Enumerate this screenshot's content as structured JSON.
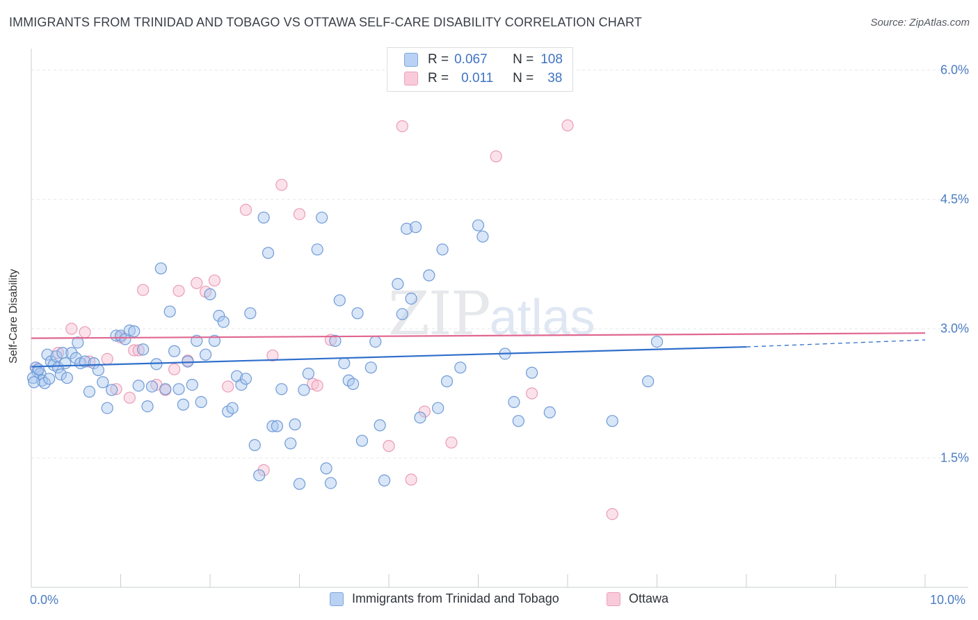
{
  "title": "IMMIGRANTS FROM TRINIDAD AND TOBAGO VS OTTAWA SELF-CARE DISABILITY CORRELATION CHART",
  "source": "Source: ZipAtlas.com",
  "watermark": {
    "zip": "ZIP",
    "atlas": "atlas"
  },
  "legend": {
    "r_label": "R =",
    "n_label": "N =",
    "series1": {
      "r": "0.067",
      "n": "108"
    },
    "series2": {
      "r": "0.011",
      "n": "38"
    }
  },
  "colors": {
    "blue_fill": "#a9c8f0",
    "blue_stroke": "#6f9ad6",
    "blue_line": "#2f6fcb",
    "pink_fill": "#f7bfd1",
    "pink_stroke": "#ea9bb7",
    "pink_line": "#e06690",
    "tick_color": "#4a7cc2"
  },
  "chart_data": {
    "type": "scatter",
    "title": "IMMIGRANTS FROM TRINIDAD AND TOBAGO VS OTTAWA SELF-CARE DISABILITY CORRELATION CHART",
    "xlabel": "",
    "ylabel": "Self-Care Disability",
    "xlim": [
      0,
      10
    ],
    "ylim": [
      0,
      6.25
    ],
    "x_tick_labels": [
      "0.0%",
      "10.0%"
    ],
    "y_ticks": [
      1.5,
      3.0,
      4.5,
      6.0
    ],
    "y_tick_labels": [
      "1.5%",
      "3.0%",
      "4.5%",
      "6.0%"
    ],
    "grid": "horizontal dashed",
    "legend_position": "top-center and bottom",
    "series": [
      {
        "name": "Immigrants from Trinidad and Tobago",
        "color": "#a9c8f0",
        "trend": {
          "x": [
            0,
            8.0
          ],
          "y": [
            2.56,
            2.79
          ],
          "dashed_extension_to": [
            10,
            2.87
          ]
        },
        "points": [
          [
            0.05,
            2.55
          ],
          [
            0.07,
            2.5
          ],
          [
            0.1,
            2.48
          ],
          [
            0.12,
            2.4
          ],
          [
            0.15,
            2.37
          ],
          [
            0.18,
            2.7
          ],
          [
            0.2,
            2.42
          ],
          [
            0.22,
            2.62
          ],
          [
            0.25,
            2.58
          ],
          [
            0.28,
            2.68
          ],
          [
            0.3,
            2.55
          ],
          [
            0.33,
            2.47
          ],
          [
            0.35,
            2.72
          ],
          [
            0.38,
            2.6
          ],
          [
            0.4,
            2.43
          ],
          [
            0.45,
            2.72
          ],
          [
            0.5,
            2.66
          ],
          [
            0.52,
            2.84
          ],
          [
            0.55,
            2.6
          ],
          [
            0.6,
            2.62
          ],
          [
            0.65,
            2.27
          ],
          [
            0.7,
            2.6
          ],
          [
            0.75,
            2.52
          ],
          [
            0.8,
            2.38
          ],
          [
            0.85,
            2.08
          ],
          [
            0.9,
            2.29
          ],
          [
            0.95,
            2.92
          ],
          [
            1.0,
            2.92
          ],
          [
            1.05,
            2.88
          ],
          [
            1.1,
            2.98
          ],
          [
            1.15,
            2.97
          ],
          [
            1.2,
            2.34
          ],
          [
            1.25,
            2.76
          ],
          [
            1.3,
            2.1
          ],
          [
            1.35,
            2.33
          ],
          [
            1.4,
            2.59
          ],
          [
            1.45,
            3.7
          ],
          [
            1.5,
            2.3
          ],
          [
            1.55,
            3.2
          ],
          [
            1.6,
            2.74
          ],
          [
            1.65,
            2.3
          ],
          [
            1.7,
            2.12
          ],
          [
            1.75,
            2.62
          ],
          [
            1.8,
            2.35
          ],
          [
            1.85,
            2.86
          ],
          [
            1.9,
            2.15
          ],
          [
            1.95,
            2.7
          ],
          [
            2.0,
            3.4
          ],
          [
            2.05,
            2.86
          ],
          [
            2.1,
            3.15
          ],
          [
            2.15,
            3.08
          ],
          [
            2.2,
            2.04
          ],
          [
            2.25,
            2.08
          ],
          [
            2.3,
            2.45
          ],
          [
            2.35,
            2.35
          ],
          [
            2.4,
            2.42
          ],
          [
            2.45,
            3.18
          ],
          [
            2.5,
            1.65
          ],
          [
            2.55,
            1.3
          ],
          [
            2.6,
            4.29
          ],
          [
            2.65,
            3.88
          ],
          [
            2.7,
            1.87
          ],
          [
            2.75,
            1.87
          ],
          [
            2.8,
            2.3
          ],
          [
            2.9,
            1.67
          ],
          [
            2.95,
            1.89
          ],
          [
            3.0,
            1.2
          ],
          [
            3.05,
            2.29
          ],
          [
            3.1,
            2.48
          ],
          [
            3.2,
            3.92
          ],
          [
            3.25,
            4.29
          ],
          [
            3.3,
            1.38
          ],
          [
            3.35,
            1.21
          ],
          [
            3.4,
            2.86
          ],
          [
            3.45,
            3.33
          ],
          [
            3.5,
            2.6
          ],
          [
            3.55,
            2.4
          ],
          [
            3.6,
            2.36
          ],
          [
            3.65,
            3.18
          ],
          [
            3.7,
            1.7
          ],
          [
            3.8,
            2.55
          ],
          [
            3.85,
            2.85
          ],
          [
            3.9,
            1.88
          ],
          [
            3.95,
            1.24
          ],
          [
            4.1,
            3.52
          ],
          [
            4.15,
            3.17
          ],
          [
            4.2,
            4.16
          ],
          [
            4.25,
            3.35
          ],
          [
            4.3,
            4.18
          ],
          [
            4.35,
            1.97
          ],
          [
            4.45,
            3.62
          ],
          [
            4.55,
            2.08
          ],
          [
            4.6,
            3.92
          ],
          [
            4.65,
            2.39
          ],
          [
            4.8,
            2.55
          ],
          [
            5.0,
            4.2
          ],
          [
            5.05,
            4.07
          ],
          [
            5.3,
            2.71
          ],
          [
            5.4,
            2.15
          ],
          [
            5.45,
            1.93
          ],
          [
            5.6,
            2.49
          ],
          [
            5.8,
            2.03
          ],
          [
            6.5,
            1.93
          ],
          [
            6.9,
            2.39
          ],
          [
            7.0,
            2.85
          ],
          [
            0.02,
            2.43
          ],
          [
            0.03,
            2.38
          ],
          [
            0.08,
            2.53
          ]
        ]
      },
      {
        "name": "Ottawa",
        "color": "#f7bfd1",
        "trend": {
          "x": [
            0,
            10
          ],
          "y": [
            2.89,
            2.95
          ]
        },
        "points": [
          [
            0.05,
            2.55
          ],
          [
            0.3,
            2.72
          ],
          [
            0.45,
            3.0
          ],
          [
            0.6,
            2.96
          ],
          [
            0.65,
            2.62
          ],
          [
            0.85,
            2.65
          ],
          [
            1.0,
            2.9
          ],
          [
            1.1,
            2.2
          ],
          [
            1.15,
            2.75
          ],
          [
            1.2,
            2.75
          ],
          [
            1.25,
            3.45
          ],
          [
            1.4,
            2.35
          ],
          [
            1.5,
            2.29
          ],
          [
            1.6,
            2.53
          ],
          [
            1.65,
            3.44
          ],
          [
            1.75,
            2.63
          ],
          [
            1.85,
            3.53
          ],
          [
            1.95,
            3.43
          ],
          [
            2.05,
            3.56
          ],
          [
            2.2,
            2.33
          ],
          [
            2.4,
            4.38
          ],
          [
            2.6,
            1.36
          ],
          [
            2.7,
            2.69
          ],
          [
            2.8,
            4.67
          ],
          [
            3.0,
            4.33
          ],
          [
            3.15,
            2.36
          ],
          [
            3.35,
            2.87
          ],
          [
            4.0,
            1.64
          ],
          [
            4.15,
            5.35
          ],
          [
            4.25,
            1.25
          ],
          [
            4.4,
            2.04
          ],
          [
            4.7,
            1.68
          ],
          [
            5.2,
            5.0
          ],
          [
            5.6,
            2.25
          ],
          [
            6.0,
            5.36
          ],
          [
            6.5,
            0.85
          ],
          [
            3.2,
            2.34
          ],
          [
            0.95,
            2.3
          ]
        ]
      }
    ]
  },
  "bottom_legend": [
    {
      "label": "Immigrants from Trinidad and Tobago"
    },
    {
      "label": "Ottawa"
    }
  ]
}
